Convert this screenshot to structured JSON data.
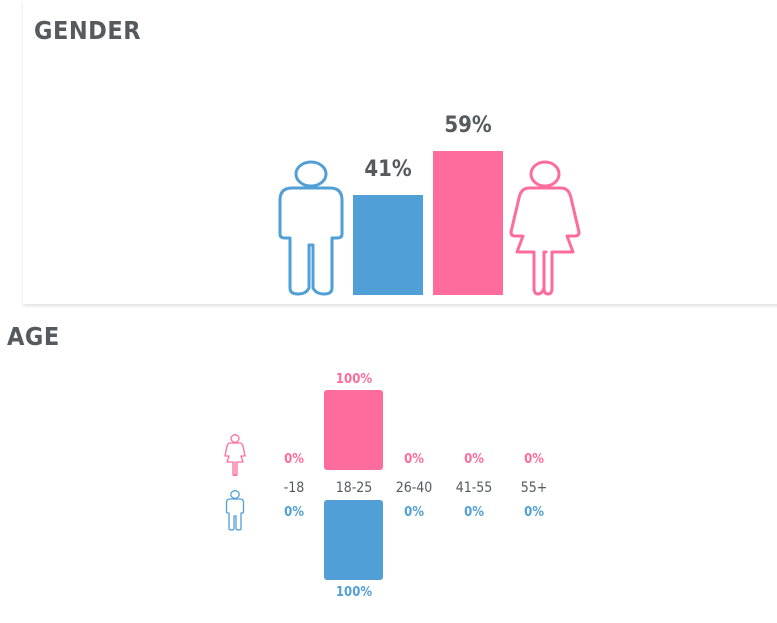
{
  "gender": {
    "title": "GENDER",
    "male_color": "#509fd6",
    "female_color": "#fe6c9d",
    "icons": {
      "male": "male-person-icon",
      "female": "female-person-icon"
    }
  },
  "age": {
    "title": "AGE",
    "icons": {
      "female": "female-person-icon",
      "male": "male-person-icon"
    }
  },
  "chart_data": [
    {
      "type": "bar",
      "title": "GENDER",
      "categories": [
        "Male",
        "Female"
      ],
      "values": [
        41,
        59
      ],
      "labels": [
        "41%",
        "59%"
      ],
      "colors": [
        "#509fd6",
        "#fe6c9d"
      ],
      "ylim": [
        0,
        100
      ]
    },
    {
      "type": "bar",
      "title": "AGE",
      "categories": [
        "-18",
        "18-25",
        "26-40",
        "41-55",
        "55+"
      ],
      "series": [
        {
          "values": [
            0,
            100,
            0,
            0,
            0
          ],
          "labels": [
            "0%",
            "100%",
            "0%",
            "0%",
            "0%"
          ],
          "color": "#fe6c9d"
        },
        {
          "values": [
            0,
            100,
            0,
            0,
            0
          ],
          "labels": [
            "0%",
            "100%",
            "0%",
            "0%",
            "0%"
          ],
          "color": "#509fd6"
        }
      ],
      "ylim": [
        0,
        100
      ]
    }
  ]
}
